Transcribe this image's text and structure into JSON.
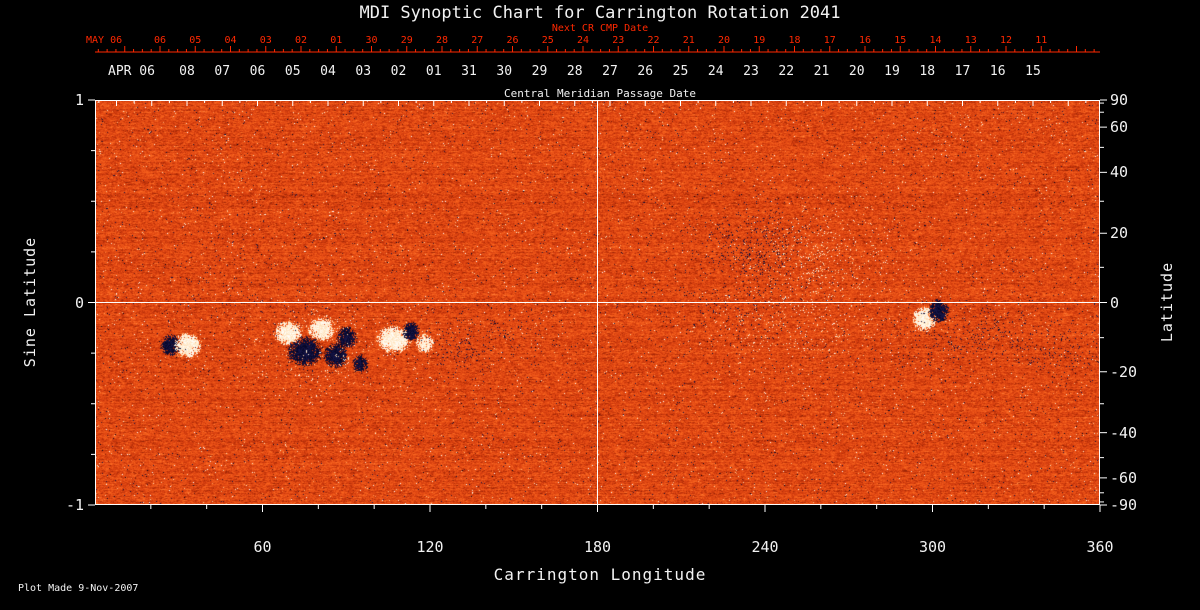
{
  "title": "MDI Synoptic Chart for Carrington Rotation 2041",
  "footer": "Plot Made  9-Nov-2007",
  "colors": {
    "background": "#000000",
    "axis": "#ffffff",
    "text": "#f2f2f2",
    "date_axis": "#ff2800"
  },
  "next_cr_axis": {
    "label": "Next CR CMP Date",
    "month": "MAY 06",
    "days": [
      "06",
      "05",
      "04",
      "03",
      "02",
      "01",
      "30",
      "29",
      "28",
      "27",
      "26",
      "25",
      "24",
      "23",
      "22",
      "21",
      "20",
      "19",
      "18",
      "17",
      "16",
      "15",
      "14",
      "13",
      "12",
      "11"
    ]
  },
  "cmp_axis": {
    "title": "Central Meridian Passage Date",
    "month": "APR 06",
    "days": [
      "08",
      "07",
      "06",
      "05",
      "04",
      "03",
      "02",
      "01",
      "31",
      "30",
      "29",
      "28",
      "27",
      "26",
      "25",
      "24",
      "23",
      "22",
      "21",
      "20",
      "19",
      "18",
      "17",
      "16",
      "15"
    ]
  },
  "x_axis": {
    "title": "Carrington Longitude",
    "major_ticks": [
      60,
      120,
      180,
      240,
      300,
      360
    ],
    "minor_step": 20,
    "range": [
      0,
      360
    ]
  },
  "y_axis_left": {
    "title": "Sine Latitude",
    "major_ticks": [
      1,
      0,
      -1
    ],
    "minor_step": 0.25,
    "range": [
      -1,
      1
    ]
  },
  "y_axis_right": {
    "title": "Latitude",
    "major_ticks": [
      90,
      60,
      40,
      20,
      0,
      -20,
      -40,
      -60,
      -90
    ],
    "minor_step_deg": 10
  },
  "reference_lines": {
    "carrington_longitude": 180,
    "sine_latitude": 0
  },
  "chart_data": {
    "type": "heatmap",
    "subject": "solar photospheric magnetic field synoptic map (magnetogram)",
    "instrument": "MDI",
    "carrington_rotation": 2041,
    "x_range_deg": [
      0,
      360
    ],
    "y_range_sine_latitude": [
      -1,
      1
    ],
    "field_encoding": {
      "positive_polarity": "white",
      "negative_polarity": "dark navy/black",
      "quiet_sun": "orange-red speckle"
    },
    "palette_stops": [
      {
        "v": 0.0,
        "color": "#00001a"
      },
      {
        "v": 0.1,
        "color": "#16164a"
      },
      {
        "v": 0.18,
        "color": "#401428"
      },
      {
        "v": 0.27,
        "color": "#7a1c08"
      },
      {
        "v": 0.37,
        "color": "#ab2a06"
      },
      {
        "v": 0.47,
        "color": "#d23c0e"
      },
      {
        "v": 0.57,
        "color": "#e95016"
      },
      {
        "v": 0.67,
        "color": "#f8641e"
      },
      {
        "v": 0.77,
        "color": "#ff8540"
      },
      {
        "v": 0.87,
        "color": "#ffbf85"
      },
      {
        "v": 0.95,
        "color": "#ffeccd"
      },
      {
        "v": 1.0,
        "color": "#ffffff"
      }
    ],
    "noise": {
      "seed": 2041,
      "base": 0.53,
      "amplitude": 0.26,
      "carry": 0.4,
      "salt_pepper": 0.011,
      "row_bias": 0.04
    },
    "active_regions": [
      {
        "kind": "spot",
        "lon": 27,
        "sine_lat": -0.21,
        "r_lon": 3,
        "r_slat": 0.045,
        "polarity": -1,
        "strength": 0.9
      },
      {
        "kind": "spot",
        "lon": 33,
        "sine_lat": -0.21,
        "r_lon": 4,
        "r_slat": 0.05,
        "polarity": 1,
        "strength": 0.95
      },
      {
        "kind": "spot",
        "lon": 69,
        "sine_lat": -0.15,
        "r_lon": 4,
        "r_slat": 0.05,
        "polarity": 1,
        "strength": 0.9
      },
      {
        "kind": "spot",
        "lon": 75,
        "sine_lat": -0.24,
        "r_lon": 5,
        "r_slat": 0.06,
        "polarity": -1,
        "strength": 0.95
      },
      {
        "kind": "spot",
        "lon": 81,
        "sine_lat": -0.13,
        "r_lon": 4,
        "r_slat": 0.05,
        "polarity": 1,
        "strength": 0.85
      },
      {
        "kind": "spot",
        "lon": 86,
        "sine_lat": -0.26,
        "r_lon": 3.5,
        "r_slat": 0.05,
        "polarity": -1,
        "strength": 0.9
      },
      {
        "kind": "spot",
        "lon": 90,
        "sine_lat": -0.17,
        "r_lon": 3,
        "r_slat": 0.045,
        "polarity": -1,
        "strength": 0.85
      },
      {
        "kind": "spot",
        "lon": 95,
        "sine_lat": -0.3,
        "r_lon": 2.5,
        "r_slat": 0.04,
        "polarity": -1,
        "strength": 0.7
      },
      {
        "kind": "spot",
        "lon": 107,
        "sine_lat": -0.18,
        "r_lon": 5,
        "r_slat": 0.055,
        "polarity": 1,
        "strength": 0.95
      },
      {
        "kind": "spot",
        "lon": 113,
        "sine_lat": -0.14,
        "r_lon": 2.5,
        "r_slat": 0.04,
        "polarity": -1,
        "strength": 0.85
      },
      {
        "kind": "spot",
        "lon": 118,
        "sine_lat": -0.2,
        "r_lon": 3,
        "r_slat": 0.045,
        "polarity": 1,
        "strength": 0.65
      },
      {
        "kind": "spot",
        "lon": 297,
        "sine_lat": -0.08,
        "r_lon": 3.5,
        "r_slat": 0.05,
        "polarity": 1,
        "strength": 0.95
      },
      {
        "kind": "spot",
        "lon": 302,
        "sine_lat": -0.04,
        "r_lon": 3,
        "r_slat": 0.05,
        "polarity": -1,
        "strength": 0.9
      },
      {
        "kind": "plage",
        "lon": 80,
        "sine_lat": -0.2,
        "r_lon": 18,
        "r_slat": 0.14,
        "polarity": 1,
        "density": 0.05
      },
      {
        "kind": "plage",
        "lon": 130,
        "sine_lat": -0.2,
        "r_lon": 10,
        "r_slat": 0.12,
        "polarity": -1,
        "density": 0.06
      },
      {
        "kind": "plage",
        "lon": 150,
        "sine_lat": -0.15,
        "r_lon": 15,
        "r_slat": 0.1,
        "polarity": -1,
        "density": 0.03
      },
      {
        "kind": "plage",
        "lon": 237,
        "sine_lat": 0.27,
        "r_lon": 15,
        "r_slat": 0.16,
        "polarity": -1,
        "density": 0.1
      },
      {
        "kind": "plage",
        "lon": 260,
        "sine_lat": 0.22,
        "r_lon": 18,
        "r_slat": 0.18,
        "polarity": 1,
        "density": 0.07
      },
      {
        "kind": "plage",
        "lon": 250,
        "sine_lat": -0.12,
        "r_lon": 25,
        "r_slat": 0.15,
        "polarity": 1,
        "density": 0.045
      },
      {
        "kind": "plage",
        "lon": 225,
        "sine_lat": -0.05,
        "r_lon": 20,
        "r_slat": 0.12,
        "polarity": -1,
        "density": 0.03
      },
      {
        "kind": "plage",
        "lon": 320,
        "sine_lat": -0.15,
        "r_lon": 15,
        "r_slat": 0.1,
        "polarity": -1,
        "density": 0.06
      },
      {
        "kind": "plage",
        "lon": 345,
        "sine_lat": -0.25,
        "r_lon": 12,
        "r_slat": 0.1,
        "polarity": -1,
        "density": 0.05
      },
      {
        "kind": "plage",
        "lon": 300,
        "sine_lat": -0.2,
        "r_lon": 25,
        "r_slat": 0.12,
        "polarity": -1,
        "density": 0.03
      },
      {
        "kind": "plage",
        "lon": 55,
        "sine_lat": 0.15,
        "r_lon": 30,
        "r_slat": 0.25,
        "polarity": -1,
        "density": 0.012
      }
    ]
  }
}
